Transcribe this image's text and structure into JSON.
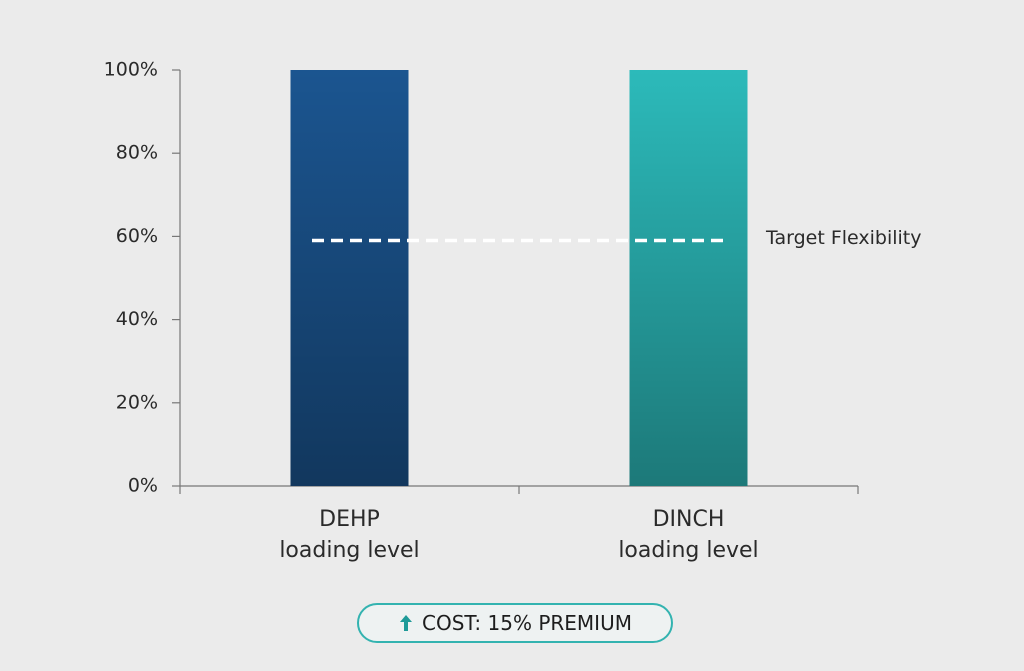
{
  "chart_data": {
    "type": "bar",
    "categories": [
      "DEHP\nloading level",
      "DINCH\nloading level"
    ],
    "values": [
      100,
      100
    ],
    "colors": [
      "#1b5590",
      "#2cbaba"
    ],
    "ylim": [
      0,
      100
    ],
    "yticks": [
      {
        "value": 0,
        "label": "0%"
      },
      {
        "value": 20,
        "label": "20%"
      },
      {
        "value": 40,
        "label": "40%"
      },
      {
        "value": 60,
        "label": "60%"
      },
      {
        "value": 80,
        "label": "80%"
      },
      {
        "value": 100,
        "label": "100%"
      }
    ],
    "reference_lines": [
      {
        "value": 59,
        "label": "Target Flexibility"
      }
    ],
    "badge": "COST: 15% PREMIUM"
  }
}
